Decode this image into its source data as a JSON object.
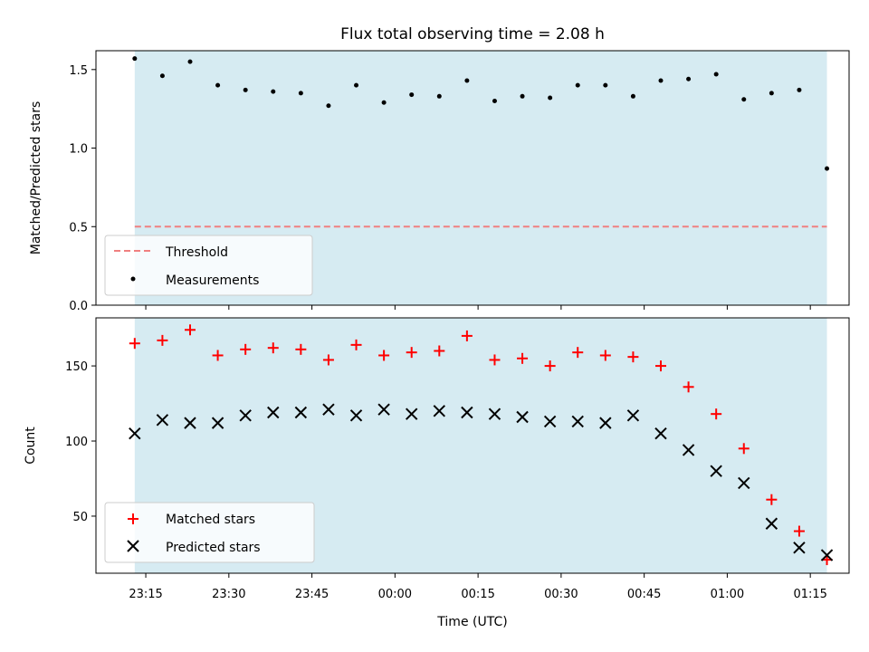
{
  "chart_data": [
    {
      "type": "scatter",
      "title": "Flux total observing time = 2.08 h",
      "xlabel": "",
      "ylabel": "Matched/Predicted stars",
      "ylim": [
        0,
        1.62
      ],
      "yticks": [
        "0.0",
        "0.5",
        "1.0",
        "1.5"
      ],
      "ytick_values": [
        0,
        0.5,
        1.0,
        1.5
      ],
      "observing_window": [
        "23:13",
        "01:18"
      ],
      "threshold": {
        "name": "Threshold",
        "value": 0.5,
        "color": "#f08080",
        "style": "dashed"
      },
      "series": [
        {
          "name": "Measurements",
          "color": "#000000",
          "marker": "dot",
          "x": [
            "23:13",
            "23:18",
            "23:23",
            "23:28",
            "23:33",
            "23:38",
            "23:43",
            "23:48",
            "23:53",
            "23:58",
            "00:03",
            "00:08",
            "00:13",
            "00:18",
            "00:23",
            "00:28",
            "00:33",
            "00:38",
            "00:43",
            "00:48",
            "00:53",
            "00:58",
            "01:03",
            "01:08",
            "01:13",
            "01:18"
          ],
          "y": [
            1.57,
            1.46,
            1.55,
            1.4,
            1.37,
            1.36,
            1.35,
            1.27,
            1.4,
            1.29,
            1.34,
            1.33,
            1.43,
            1.3,
            1.33,
            1.32,
            1.4,
            1.4,
            1.33,
            1.43,
            1.44,
            1.47,
            1.31,
            1.35,
            1.37,
            0.87
          ]
        }
      ],
      "legend": {
        "placement": "lower-left",
        "entries": [
          "Threshold",
          "Measurements"
        ]
      }
    },
    {
      "type": "scatter",
      "title": "",
      "xlabel": "Time (UTC)",
      "ylabel": "Count",
      "ylim": [
        12,
        182
      ],
      "yticks": [
        "50",
        "100",
        "150"
      ],
      "ytick_values": [
        50,
        100,
        150
      ],
      "xticks": [
        "23:15",
        "23:30",
        "23:45",
        "00:00",
        "00:15",
        "00:30",
        "00:45",
        "01:00",
        "01:15"
      ],
      "xlim": [
        "23:06",
        "01:22"
      ],
      "observing_window": [
        "23:13",
        "01:18"
      ],
      "series": [
        {
          "name": "Matched stars",
          "color": "#ff0000",
          "marker": "plus",
          "x": [
            "23:13",
            "23:18",
            "23:23",
            "23:28",
            "23:33",
            "23:38",
            "23:43",
            "23:48",
            "23:53",
            "23:58",
            "00:03",
            "00:08",
            "00:13",
            "00:18",
            "00:23",
            "00:28",
            "00:33",
            "00:38",
            "00:43",
            "00:48",
            "00:53",
            "00:58",
            "01:03",
            "01:08",
            "01:13",
            "01:18"
          ],
          "y": [
            165,
            167,
            174,
            157,
            161,
            162,
            161,
            154,
            164,
            157,
            159,
            160,
            170,
            154,
            155,
            150,
            159,
            157,
            156,
            150,
            136,
            118,
            95,
            61,
            40,
            21
          ]
        },
        {
          "name": "Predicted stars",
          "color": "#000000",
          "marker": "x",
          "x": [
            "23:13",
            "23:18",
            "23:23",
            "23:28",
            "23:33",
            "23:38",
            "23:43",
            "23:48",
            "23:53",
            "23:58",
            "00:03",
            "00:08",
            "00:13",
            "00:18",
            "00:23",
            "00:28",
            "00:33",
            "00:38",
            "00:43",
            "00:48",
            "00:53",
            "00:58",
            "01:03",
            "01:08",
            "01:13",
            "01:18"
          ],
          "y": [
            105,
            114,
            112,
            112,
            117,
            119,
            119,
            121,
            117,
            121,
            118,
            120,
            119,
            118,
            116,
            113,
            113,
            112,
            117,
            105,
            94,
            80,
            72,
            45,
            29,
            24
          ]
        }
      ],
      "legend": {
        "placement": "lower-left",
        "entries": [
          "Matched stars",
          "Predicted stars"
        ]
      }
    }
  ],
  "colors": {
    "shade": "#add8e6",
    "axis": "#000000"
  }
}
